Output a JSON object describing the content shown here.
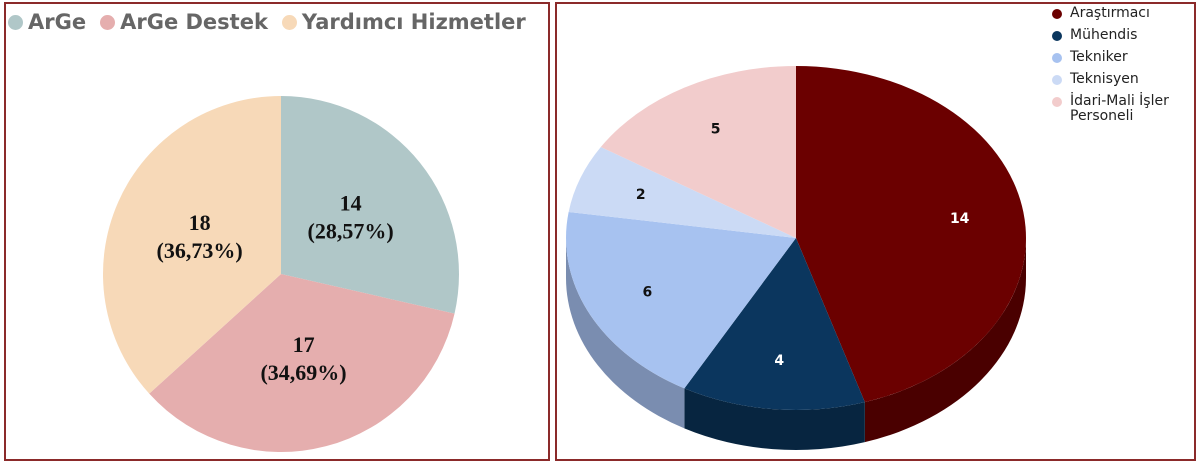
{
  "chart_data": [
    {
      "type": "pie",
      "categories": [
        "ArGe",
        "ArGe Destek",
        "Yardımcı Hizmetler"
      ],
      "values": [
        14,
        17,
        18
      ],
      "percent_labels": [
        "(28,57%)",
        "(34,69%)",
        "(36,73%)"
      ],
      "colors": [
        "#b0c7c8",
        "#e5aeae",
        "#f7d9b8"
      ]
    },
    {
      "type": "pie3d",
      "categories": [
        "Araştırmacı",
        "Mühendis",
        "Tekniker",
        "Teknisyen",
        "İdari-Mali İşler Personeli"
      ],
      "values": [
        14,
        4,
        6,
        2,
        5
      ],
      "colors": [
        "#6b0000",
        "#0b365e",
        "#a7c2f0",
        "#cbdaf5",
        "#f2cccc"
      ],
      "side_colors": [
        "#4a0000",
        "#072540",
        "#7a8db0",
        "#95a3bd",
        "#b89a9a"
      ]
    }
  ]
}
